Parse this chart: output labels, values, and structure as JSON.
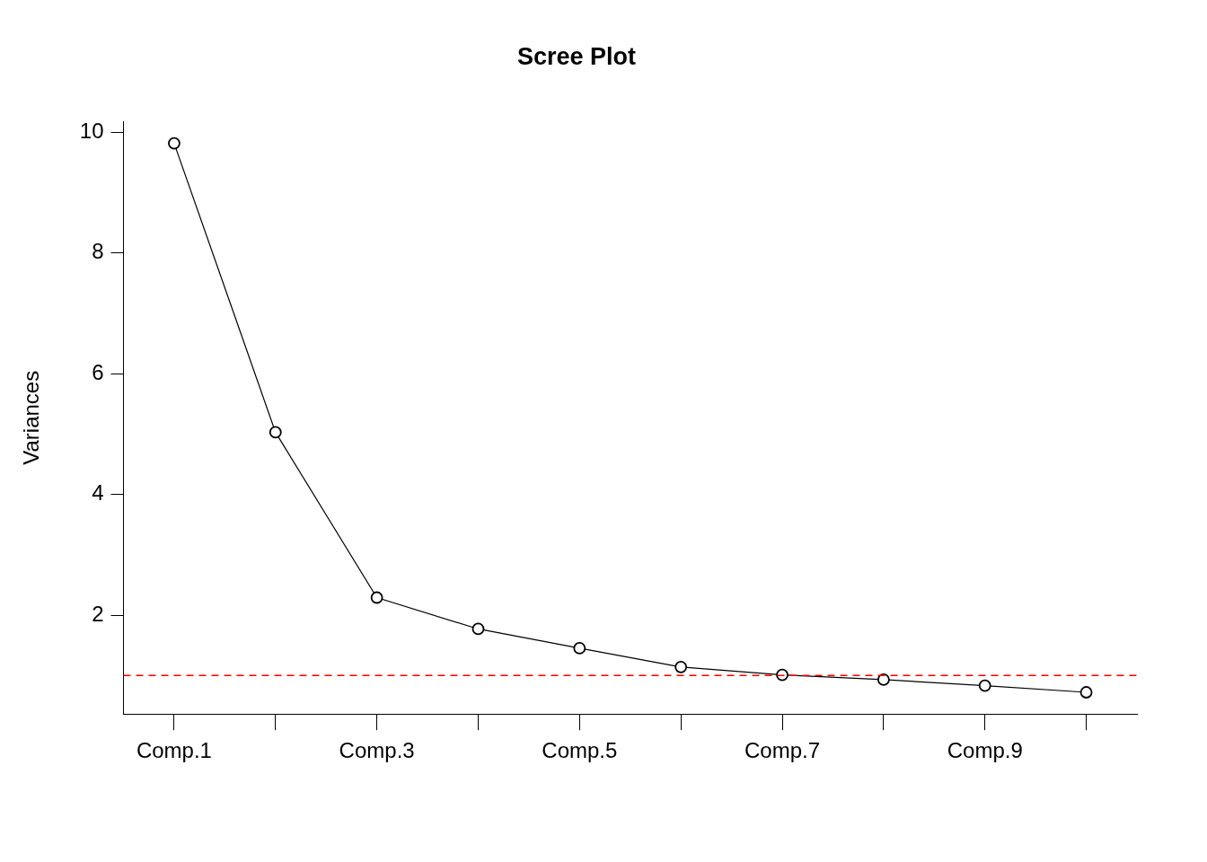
{
  "chart_data": {
    "type": "line",
    "title": "Scree Plot",
    "ylabel": "Variances",
    "categories": [
      "Comp.1",
      null,
      "Comp.3",
      null,
      "Comp.5",
      null,
      "Comp.7",
      null,
      "Comp.9",
      null
    ],
    "series": [
      {
        "color": "#000000",
        "values": [
          9.82,
          5.03,
          2.29,
          1.77,
          1.45,
          1.14,
          1.01,
          0.93,
          0.83,
          0.72
        ]
      }
    ],
    "ylim": [
      0.36,
      10.18
    ],
    "yticks": [
      2,
      4,
      6,
      8,
      10
    ],
    "grid": false,
    "legend": false,
    "marker": "circle",
    "line_style": "solid",
    "ref_lines": [
      {
        "axis": "y",
        "value": 1,
        "color": "#ff0000",
        "line_style": "dashed"
      }
    ]
  }
}
